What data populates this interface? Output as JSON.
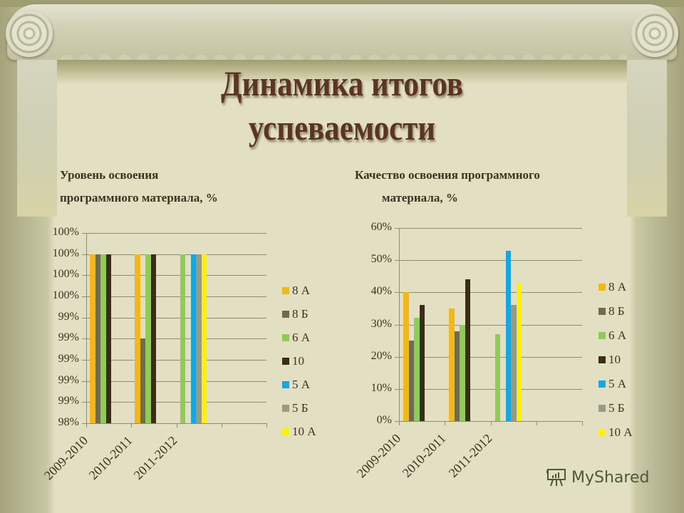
{
  "slide": {
    "title_line1": "Динамика итогов",
    "title_line2": "успеваемости",
    "left_subtitle_line1": "Уровень освоения",
    "left_subtitle_line2": "программного материала, %",
    "right_subtitle_line1": "Качество освоения программного",
    "right_subtitle_line2": "материала, %",
    "watermark": "MyShared"
  },
  "colors": {
    "8 А": "#f2b718",
    "8 Б": "#6e6c4c",
    "6 А": "#8fcb57",
    "10": "#3a2c16",
    "5 А": "#17a6e0",
    "5 Б": "#9a9983",
    "10 А": "#fff200"
  },
  "chart_data": [
    {
      "type": "bar",
      "title": "Уровень освоения программного материала, %",
      "categories": [
        "2009-2010",
        "2010-2011",
        "2011-2012"
      ],
      "ytick_labels": [
        "100%",
        "100%",
        "100%",
        "100%",
        "99%",
        "99%",
        "99%",
        "99%",
        "99%",
        "98%"
      ],
      "ylim": [
        98,
        100.25
      ],
      "grid": true,
      "legend_position": "right",
      "series": [
        {
          "name": "8 А",
          "values": [
            100,
            100,
            null
          ]
        },
        {
          "name": "8 Б",
          "values": [
            100,
            99,
            null
          ]
        },
        {
          "name": "6 А",
          "values": [
            100,
            100,
            100
          ]
        },
        {
          "name": "10",
          "values": [
            100,
            100,
            null
          ]
        },
        {
          "name": "5 А",
          "values": [
            null,
            null,
            100
          ]
        },
        {
          "name": "5 Б",
          "values": [
            null,
            null,
            100
          ]
        },
        {
          "name": "10 А",
          "values": [
            null,
            null,
            100
          ]
        }
      ]
    },
    {
      "type": "bar",
      "title": "Качество освоения программного материала, %",
      "categories": [
        "2009-2010",
        "2010-2011",
        "2011-2012"
      ],
      "ytick_labels": [
        "60%",
        "50%",
        "40%",
        "30%",
        "20%",
        "10%",
        "0%"
      ],
      "ylim": [
        0,
        60
      ],
      "grid": true,
      "legend_position": "right",
      "series": [
        {
          "name": "8 А",
          "values": [
            40,
            35,
            null
          ]
        },
        {
          "name": "8 Б",
          "values": [
            25,
            28,
            null
          ]
        },
        {
          "name": "6 А",
          "values": [
            32,
            30,
            27
          ]
        },
        {
          "name": "10",
          "values": [
            36,
            44,
            null
          ]
        },
        {
          "name": "5 А",
          "values": [
            null,
            null,
            53
          ]
        },
        {
          "name": "5 Б",
          "values": [
            null,
            null,
            36
          ]
        },
        {
          "name": "10 А",
          "values": [
            null,
            null,
            43
          ]
        }
      ]
    }
  ]
}
